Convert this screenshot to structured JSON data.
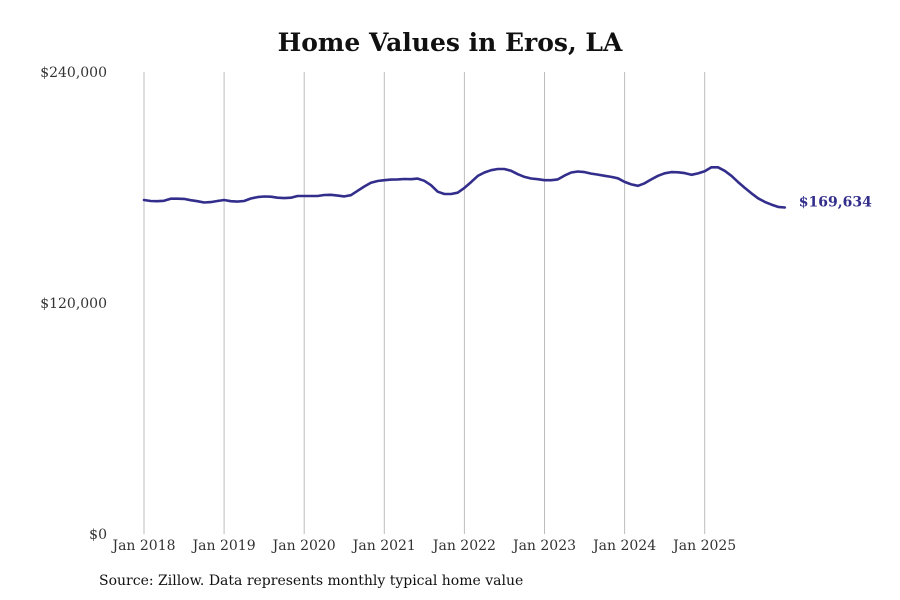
{
  "chart_data": {
    "type": "line",
    "title": "Home Values in Eros, LA",
    "source": "Source: Zillow. Data represents monthly typical home value",
    "xlabel": "",
    "ylabel": "",
    "x_start": "2018-01",
    "x_ticks": [
      "Jan 2018",
      "Jan 2019",
      "Jan 2020",
      "Jan 2021",
      "Jan 2022",
      "Jan 2023",
      "Jan 2024",
      "Jan 2025"
    ],
    "y_ticks": [
      0,
      120000,
      240000
    ],
    "y_tick_labels": [
      "$0",
      "$120,000",
      "$240,000"
    ],
    "ylim": [
      0,
      240000
    ],
    "grid": "vertical",
    "line_color": "#332e8c",
    "end_label": "$169,634",
    "series": [
      {
        "name": "Typical home value",
        "values": [
          173500,
          173000,
          172900,
          173100,
          174200,
          174200,
          174100,
          173400,
          172900,
          172200,
          172400,
          173000,
          173500,
          172900,
          172700,
          173000,
          174300,
          175000,
          175300,
          175200,
          174700,
          174500,
          174700,
          175600,
          175600,
          175600,
          175600,
          176100,
          176200,
          175800,
          175400,
          176000,
          178300,
          180500,
          182500,
          183400,
          183800,
          184100,
          184200,
          184400,
          184300,
          184600,
          183500,
          181200,
          177800,
          176600,
          176600,
          177300,
          179800,
          182800,
          186000,
          187800,
          189000,
          189600,
          189600,
          188700,
          186900,
          185500,
          184700,
          184300,
          183800,
          183800,
          184200,
          186200,
          187800,
          188300,
          188000,
          187200,
          186700,
          186100,
          185500,
          184800,
          182900,
          181600,
          180900,
          182200,
          184200,
          186100,
          187400,
          188000,
          187900,
          187500,
          186600,
          187300,
          188400,
          190500,
          190500,
          188700,
          186100,
          182800,
          179800,
          177000,
          174400,
          172500,
          171100,
          169900,
          169634
        ]
      }
    ]
  }
}
